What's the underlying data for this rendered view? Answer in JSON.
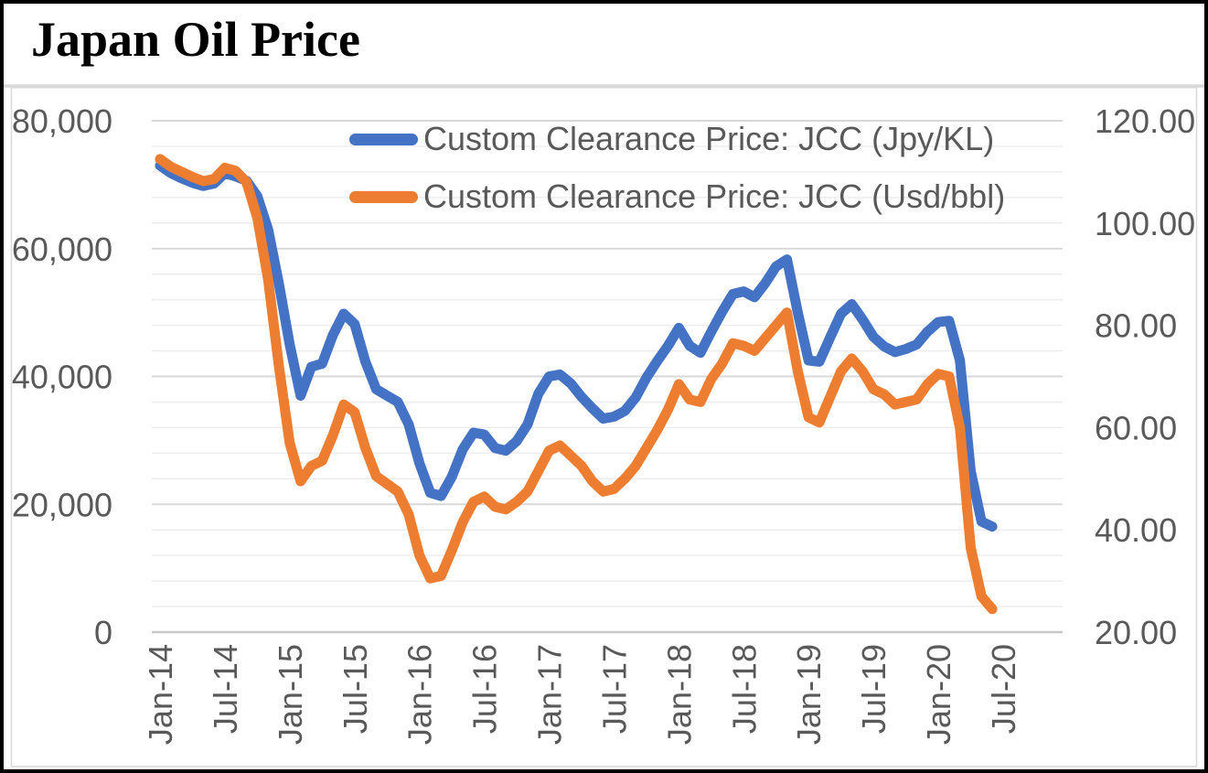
{
  "title": "Japan Oil Price",
  "text_color": "#595959",
  "legend": [
    {
      "label": "Custom Clearance Price: JCC (Jpy/KL)",
      "color": "#4472C4"
    },
    {
      "label": "Custom Clearance Price: JCC (Usd/bbl)",
      "color": "#ED7D31"
    }
  ],
  "chart_data": {
    "type": "line",
    "title": "Japan Oil Price",
    "grid": "horizontal",
    "legend_position": "inside-top",
    "x": [
      "Jan-14",
      "Feb-14",
      "Mar-14",
      "Apr-14",
      "May-14",
      "Jun-14",
      "Jul-14",
      "Aug-14",
      "Sep-14",
      "Oct-14",
      "Nov-14",
      "Dec-14",
      "Jan-15",
      "Feb-15",
      "Mar-15",
      "Apr-15",
      "May-15",
      "Jun-15",
      "Jul-15",
      "Aug-15",
      "Sep-15",
      "Oct-15",
      "Nov-15",
      "Dec-15",
      "Jan-16",
      "Feb-16",
      "Mar-16",
      "Apr-16",
      "May-16",
      "Jun-16",
      "Jul-16",
      "Aug-16",
      "Sep-16",
      "Oct-16",
      "Nov-16",
      "Dec-16",
      "Jan-17",
      "Feb-17",
      "Mar-17",
      "Apr-17",
      "May-17",
      "Jun-17",
      "Jul-17",
      "Aug-17",
      "Sep-17",
      "Oct-17",
      "Nov-17",
      "Dec-17",
      "Jan-18",
      "Feb-18",
      "Mar-18",
      "Apr-18",
      "May-18",
      "Jun-18",
      "Jul-18",
      "Aug-18",
      "Sep-18",
      "Oct-18",
      "Nov-18",
      "Dec-18",
      "Jan-19",
      "Feb-19",
      "Mar-19",
      "Apr-19",
      "May-19",
      "Jun-19",
      "Jul-19",
      "Aug-19",
      "Sep-19",
      "Oct-19",
      "Nov-19",
      "Dec-19",
      "Jan-20",
      "Feb-20",
      "Mar-20",
      "Apr-20",
      "May-20",
      "Jun-20"
    ],
    "x_axis": {
      "tick_labels": [
        "Jan-14",
        "Jul-14",
        "Jan-15",
        "Jul-15",
        "Jan-16",
        "Jul-16",
        "Jan-17",
        "Jul-17",
        "Jan-18",
        "Jul-18",
        "Jan-19",
        "Jul-19",
        "Jan-20",
        "Jul-20"
      ],
      "label_rotation": -90
    },
    "left_axis": {
      "min": 0,
      "max": 80000,
      "major": 20000,
      "tick_labels": [
        "80,000",
        "60,000",
        "40,000",
        "20,000",
        "0"
      ]
    },
    "right_axis": {
      "min": 20,
      "max": 120,
      "major": 20,
      "minor": 5,
      "tick_labels": [
        "120.00",
        "100.00",
        "80.00",
        "60.00",
        "40.00",
        "20.00"
      ]
    },
    "series": [
      {
        "name": "Custom Clearance Price: JCC (Jpy/KL)",
        "axis": "left",
        "color": "#4472C4",
        "values": [
          73000,
          71800,
          71000,
          70300,
          69800,
          70200,
          71800,
          71300,
          70600,
          68200,
          63000,
          54500,
          45000,
          37000,
          41500,
          42000,
          46500,
          49800,
          48200,
          42300,
          38000,
          37000,
          36000,
          32500,
          26400,
          21800,
          21300,
          24300,
          28600,
          31200,
          30900,
          28800,
          28400,
          29900,
          32500,
          37300,
          40000,
          40300,
          38900,
          36800,
          35000,
          33400,
          33700,
          34600,
          36700,
          39800,
          42400,
          44800,
          47600,
          44800,
          43700,
          47000,
          50100,
          52900,
          53300,
          52400,
          54600,
          57200,
          58300,
          50000,
          42500,
          42300,
          46100,
          49800,
          51300,
          48900,
          46200,
          44700,
          43800,
          44300,
          45000,
          47000,
          48500,
          48700,
          42500,
          25200,
          17300,
          16500
        ]
      },
      {
        "name": "Custom Clearance Price: JCC (Usd/bbl)",
        "axis": "right",
        "color": "#ED7D31",
        "values": [
          112.5,
          111.0,
          110.0,
          109.0,
          108.2,
          108.6,
          110.8,
          110.2,
          108.0,
          101.0,
          89.0,
          72.0,
          57.0,
          49.5,
          52.5,
          53.5,
          58.5,
          64.5,
          63.0,
          56.0,
          50.5,
          49.0,
          47.5,
          43.0,
          35.0,
          30.5,
          31.0,
          36.0,
          41.5,
          45.5,
          46.5,
          44.5,
          44.0,
          45.5,
          47.5,
          51.5,
          55.5,
          56.5,
          54.5,
          52.5,
          49.5,
          47.5,
          48.0,
          50.0,
          52.5,
          56.0,
          59.5,
          63.5,
          68.5,
          65.5,
          65.0,
          69.5,
          72.5,
          76.5,
          76.0,
          75.0,
          77.5,
          80.0,
          82.5,
          71.0,
          62.0,
          61.0,
          66.0,
          71.0,
          73.5,
          71.0,
          67.5,
          66.5,
          64.5,
          65.0,
          65.5,
          68.5,
          70.5,
          70.0,
          60.0,
          36.5,
          27.0,
          24.5
        ]
      }
    ]
  }
}
